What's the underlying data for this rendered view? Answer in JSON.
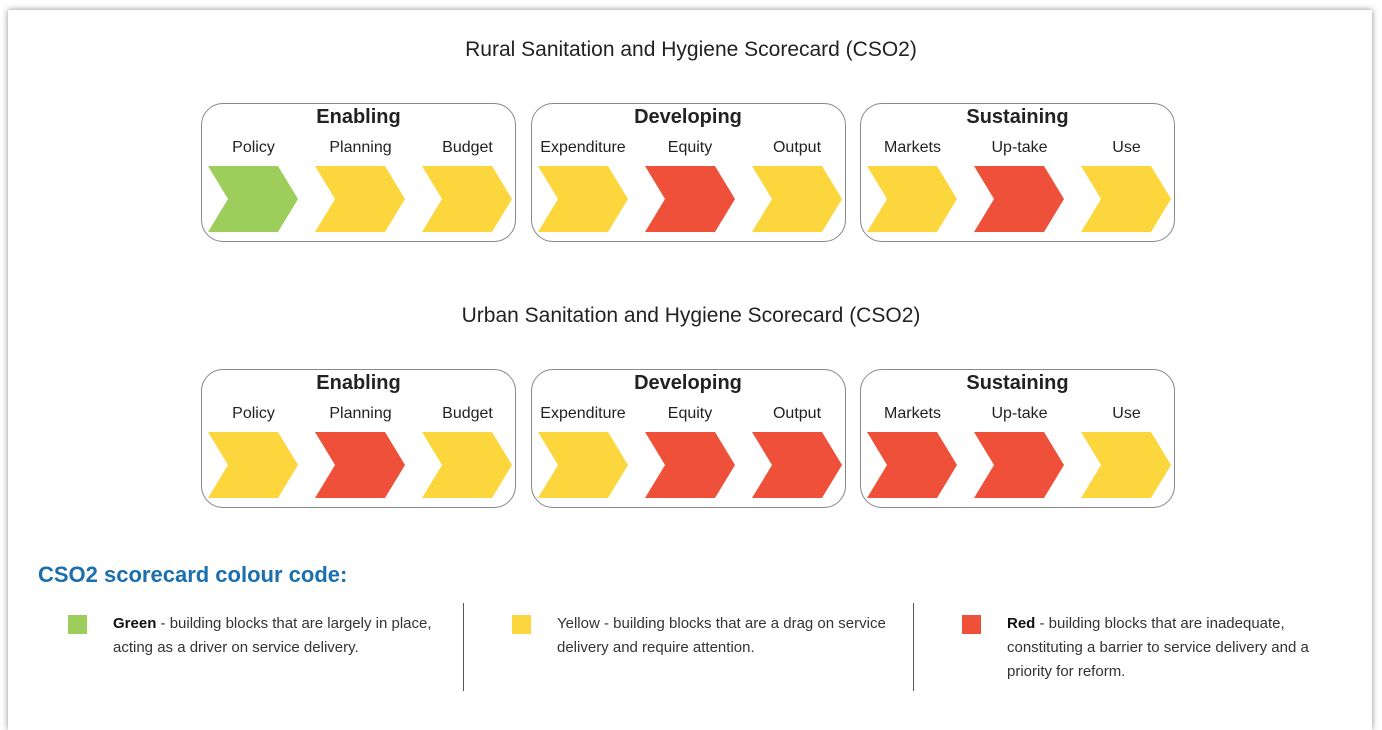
{
  "scorecards": [
    {
      "title": "Rural Sanitation and Hygiene Scorecard (CSO2)",
      "groups": [
        {
          "name": "Enabling",
          "blocks": [
            {
              "label": "Policy",
              "color": "#9dcd5a"
            },
            {
              "label": "Planning",
              "color": "#fbd63c"
            },
            {
              "label": "Budget",
              "color": "#fbd63c"
            }
          ]
        },
        {
          "name": "Developing",
          "blocks": [
            {
              "label": "Expenditure",
              "color": "#fbd63c"
            },
            {
              "label": "Equity",
              "color": "#ef503a"
            },
            {
              "label": "Output",
              "color": "#fbd63c"
            }
          ]
        },
        {
          "name": "Sustaining",
          "blocks": [
            {
              "label": "Markets",
              "color": "#fbd63c"
            },
            {
              "label": "Up-take",
              "color": "#ef503a"
            },
            {
              "label": "Use",
              "color": "#fbd63c"
            }
          ]
        }
      ]
    },
    {
      "title": "Urban Sanitation and Hygiene Scorecard (CSO2)",
      "groups": [
        {
          "name": "Enabling",
          "blocks": [
            {
              "label": "Policy",
              "color": "#fbd63c"
            },
            {
              "label": "Planning",
              "color": "#ef503a"
            },
            {
              "label": "Budget",
              "color": "#fbd63c"
            }
          ]
        },
        {
          "name": "Developing",
          "blocks": [
            {
              "label": "Expenditure",
              "color": "#fbd63c"
            },
            {
              "label": "Equity",
              "color": "#ef503a"
            },
            {
              "label": "Output",
              "color": "#ef503a"
            }
          ]
        },
        {
          "name": "Sustaining",
          "blocks": [
            {
              "label": "Markets",
              "color": "#ef503a"
            },
            {
              "label": "Up-take",
              "color": "#ef503a"
            },
            {
              "label": "Use",
              "color": "#fbd63c"
            }
          ]
        }
      ]
    }
  ],
  "legend": {
    "title": "CSO2 scorecard colour code:",
    "items": [
      {
        "color": "#9dcd5a",
        "bold": "Green",
        "text": " - building blocks that are largely in place, acting as a driver on service delivery."
      },
      {
        "color": "#fbd63c",
        "text": "Yellow - building blocks that are a drag on service delivery and require attention."
      },
      {
        "color": "#ef503a",
        "bold": "Red",
        "text": " - building blocks that are inadequate, constituting a barrier to service delivery and a priority for reform."
      }
    ]
  }
}
